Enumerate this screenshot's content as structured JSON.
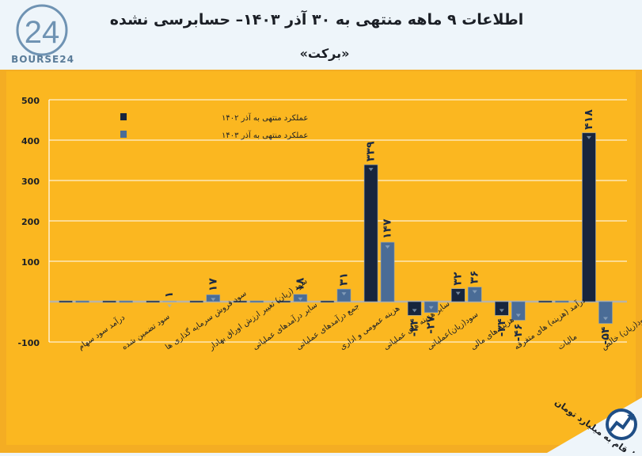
{
  "header": {
    "title": "اطلاعات ۹ ماهه منتهی به ۳۰ آذر ۱۴۰۳– حسابرسی نشده",
    "subtitle": "«برکت»",
    "logo_text": "BOURSE24",
    "logo_mark": "24"
  },
  "footer": {
    "units_label": "ارقام به میلیارد تومان",
    "icon": "trend-arrow-icon"
  },
  "colors": {
    "background": "#f4ad23",
    "plot_area": "#fbb720",
    "series_1402": "#17253d",
    "series_1403": "#4a6c96"
  },
  "chart_data": {
    "type": "bar",
    "ylim": [
      -100,
      500
    ],
    "yticks": [
      -100,
      0,
      100,
      200,
      300,
      400,
      500
    ],
    "ytick_labels": [
      "-100",
      "",
      "100",
      "200",
      "300",
      "400",
      "500"
    ],
    "legend_position": "top-left",
    "categories": [
      "درآمد سود سهام",
      "سود تضمین شده",
      "سود فروش سرمایه گذاری ها",
      "سود (زیان) تغییر ارزش اوراق بهادار",
      "سایر درآمدهای عملیاتی",
      "جمع درآمدهای عملیاتی",
      "هزینه عمومی و اداری",
      "سایر هزینه های عملیاتی",
      "سود(زیان)عملیاتی",
      "هزینه های مالی",
      "درآمد (هزینه) های متفرقه",
      "مالیات",
      "سود(زیان) خالص"
    ],
    "series": [
      {
        "name": "عملکرد منتهی به آذر ۱۴۰۲",
        "values": [
          0,
          0,
          0,
          0,
          0,
          0,
          0,
          339,
          -34,
          32,
          -34,
          0,
          418
        ],
        "labels": [
          "",
          "",
          "",
          "",
          "",
          "",
          "",
          "۳۳۹",
          "-۳۴",
          "۳۲",
          "-۳۴",
          "",
          "۴۱۸"
        ]
      },
      {
        "name": "عملکرد منتهی به آذر ۱۴۰۳",
        "values": [
          0,
          0,
          1,
          17,
          0,
          18,
          31,
          147,
          -27,
          36,
          -46,
          0,
          -54
        ],
        "labels": [
          "",
          "",
          "۱",
          "۱۷",
          "",
          "۱۸",
          "۳۱",
          "۱۴۷",
          "-۲۷",
          "۳۶",
          "-۴۶",
          "",
          "-۵۴"
        ]
      }
    ]
  }
}
